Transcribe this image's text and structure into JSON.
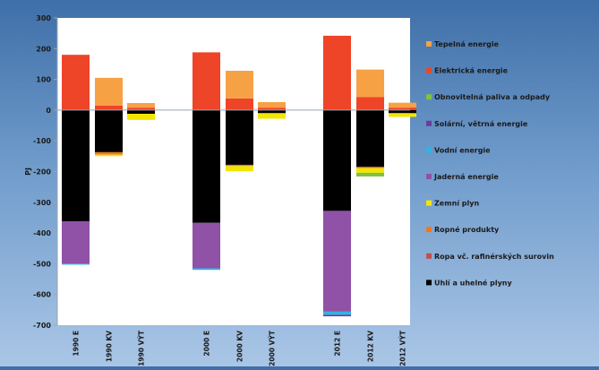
{
  "chart_data": {
    "type": "bar",
    "stacked": true,
    "ylabel": "PJ",
    "ylim": [
      -700,
      300
    ],
    "yticks": [
      300,
      200,
      100,
      0,
      -100,
      -200,
      -300,
      -400,
      -500,
      -600,
      -700
    ],
    "grid": false,
    "legend_position": "right",
    "categories": [
      "1990 E",
      "1990 KV",
      "1990 VÝT",
      "2000 E",
      "2000 KV",
      "2000 VÝT",
      "2012 E",
      "2012 KV",
      "2012 VÝT"
    ],
    "series": [
      {
        "name": "Uhlí a uhelné plyny",
        "color": "#000000",
        "values": [
          -362,
          -137,
          -12,
          -367,
          -178,
          -10,
          -328,
          -185,
          -10
        ]
      },
      {
        "name": "Ropa vč. rafinérských surovin",
        "color": "#c0504d",
        "values": [
          0,
          0,
          0,
          0,
          0,
          0,
          0,
          0,
          0
        ]
      },
      {
        "name": "Ropné produkty",
        "color": "#ea7a22",
        "values": [
          0,
          -8,
          0,
          0,
          -4,
          0,
          0,
          -4,
          0
        ]
      },
      {
        "name": "Zemní plyn",
        "color": "#f2e600",
        "values": [
          0,
          -5,
          -20,
          0,
          -17,
          -18,
          0,
          -15,
          -12
        ]
      },
      {
        "name": "Jaderná energie",
        "color": "#8f52a6",
        "values": [
          -138,
          0,
          0,
          -148,
          0,
          0,
          -328,
          0,
          0
        ]
      },
      {
        "name": "Vodní energie",
        "color": "#2fb4e6",
        "values": [
          -3,
          0,
          0,
          -5,
          0,
          0,
          -10,
          0,
          0
        ]
      },
      {
        "name": "Solární, větrná energie",
        "color": "#6a3d9a",
        "values": [
          0,
          0,
          0,
          0,
          0,
          0,
          -5,
          0,
          0
        ]
      },
      {
        "name": "Obnovitelná paliva a odpady",
        "color": "#7fc242",
        "values": [
          0,
          0,
          0,
          0,
          0,
          0,
          0,
          -12,
          0
        ]
      },
      {
        "name": "Elektrická energie",
        "color": "#ee4427",
        "values": [
          180,
          15,
          8,
          188,
          38,
          8,
          242,
          42,
          8
        ]
      },
      {
        "name": "Tepelná energie",
        "color": "#f7a145",
        "values": [
          0,
          90,
          15,
          0,
          90,
          18,
          0,
          90,
          16
        ]
      }
    ]
  }
}
